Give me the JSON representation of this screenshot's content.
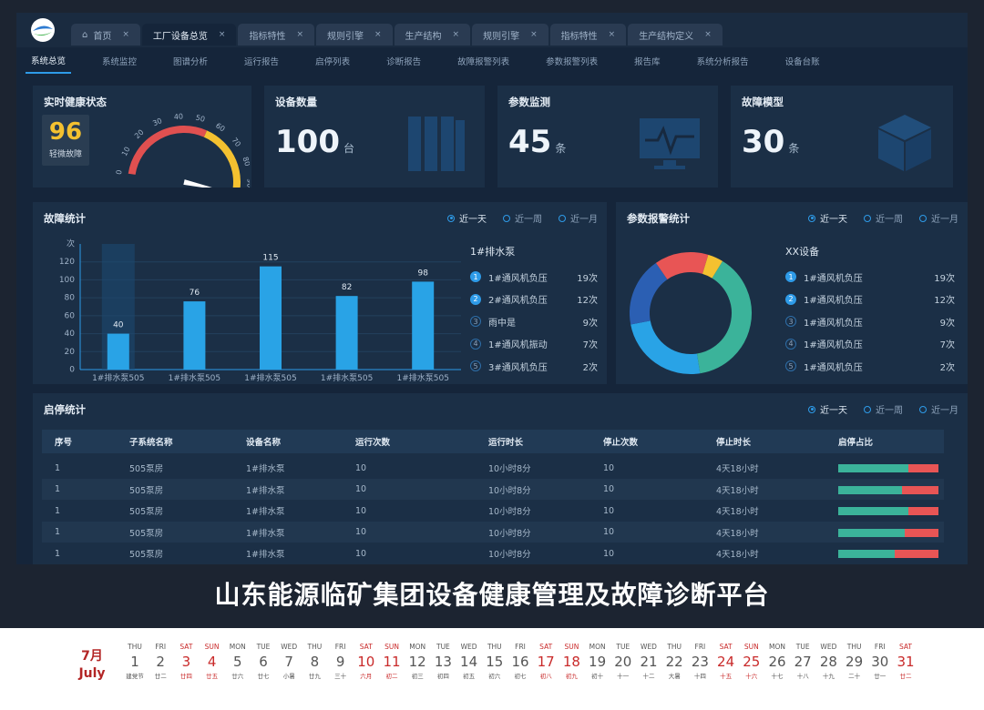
{
  "tabs": [
    {
      "label": "首页",
      "home": true,
      "active": false
    },
    {
      "label": "工厂设备总览",
      "home": false,
      "active": true
    },
    {
      "label": "指标特性",
      "home": false,
      "active": false
    },
    {
      "label": "规则引擎",
      "home": false,
      "active": false
    },
    {
      "label": "生产结构",
      "home": false,
      "active": false
    },
    {
      "label": "规则引擎",
      "home": false,
      "active": false
    },
    {
      "label": "指标特性",
      "home": false,
      "active": false
    },
    {
      "label": "生产结构定义",
      "home": false,
      "active": false
    }
  ],
  "tab_close": "×",
  "subnav": [
    "系统总览",
    "系统监控",
    "图谱分析",
    "运行报告",
    "启停列表",
    "诊断报告",
    "故障报警列表",
    "参数报警列表",
    "报告库",
    "系统分析报告",
    "设备台账"
  ],
  "health": {
    "title": "实时健康状态",
    "score": "96",
    "status": "轻微故障",
    "gauge_ticks": [
      "0",
      "10",
      "20",
      "30",
      "40",
      "50",
      "60",
      "70",
      "80",
      "90",
      "100"
    ],
    "gauge_value": 96,
    "colors": {
      "red": "#e05050",
      "yellow": "#f4c130",
      "needle": "#ffffff"
    }
  },
  "kpis": [
    {
      "title": "设备数量",
      "value": "100",
      "unit": "台",
      "icon": "bookshelf-icon"
    },
    {
      "title": "参数监测",
      "value": "45",
      "unit": "条",
      "icon": "monitor-icon"
    },
    {
      "title": "故障模型",
      "value": "30",
      "unit": "条",
      "icon": "cube-icon"
    }
  ],
  "fault_stats": {
    "title": "故障统计",
    "radios": [
      {
        "label": "近一天",
        "on": true
      },
      {
        "label": "近一周",
        "on": false
      },
      {
        "label": "近一月",
        "on": false
      }
    ],
    "rank_title": "1#排水泵",
    "rank": [
      {
        "no": "1",
        "name": "1#通风机负压",
        "count": "19次"
      },
      {
        "no": "2",
        "name": "2#通风机负压",
        "count": "12次"
      },
      {
        "no": "3",
        "name": "雨中是",
        "count": "9次"
      },
      {
        "no": "4",
        "name": "1#通风机振动",
        "count": "7次"
      },
      {
        "no": "5",
        "name": "3#通风机负压",
        "count": "2次"
      }
    ]
  },
  "chart_data": {
    "type": "bar",
    "ylabel": "次",
    "ylim": [
      0,
      140
    ],
    "yticks": [
      "0",
      "20",
      "40",
      "60",
      "80",
      "100",
      "120"
    ],
    "categories": [
      "1#排水泵505",
      "1#排水泵505",
      "1#排水泵505",
      "1#排水泵505",
      "1#排水泵505"
    ],
    "values": [
      40,
      76,
      115,
      82,
      98
    ],
    "labels": [
      "40",
      "76",
      "115",
      "82",
      "98"
    ],
    "highlight_index": 0,
    "bar_color": "#29a3e6"
  },
  "param_alarm": {
    "title": "参数报警统计",
    "radios": [
      {
        "label": "近一天",
        "on": true
      },
      {
        "label": "近一周",
        "on": false
      },
      {
        "label": "近一月",
        "on": false
      }
    ],
    "rank_title": "XX设备",
    "rank": [
      {
        "no": "1",
        "name": "1#通风机负压",
        "count": "19次"
      },
      {
        "no": "2",
        "name": "1#通风机负压",
        "count": "12次"
      },
      {
        "no": "3",
        "name": "1#通风机负压",
        "count": "9次"
      },
      {
        "no": "4",
        "name": "1#通风机负压",
        "count": "7次"
      },
      {
        "no": "5",
        "name": "1#通风机负压",
        "count": "2次"
      }
    ],
    "donut": [
      {
        "value": 19,
        "color": "#3bb39a"
      },
      {
        "value": 12,
        "color": "#29a3e6"
      },
      {
        "value": 9,
        "color": "#2b5fb3"
      },
      {
        "value": 7,
        "color": "#e85555"
      },
      {
        "value": 2,
        "color": "#f4c130"
      }
    ]
  },
  "start_stop": {
    "title": "启停统计",
    "radios": [
      {
        "label": "近一天",
        "on": true
      },
      {
        "label": "近一周",
        "on": false
      },
      {
        "label": "近一月",
        "on": false
      }
    ],
    "columns": [
      "序号",
      "子系统名称",
      "设备名称",
      "运行次数",
      "运行时长",
      "停止次数",
      "停止时长",
      "启停占比"
    ],
    "rows": [
      {
        "no": "1",
        "system": "505泵房",
        "device": "1#排水泵",
        "runs": "10",
        "run_time": "10小时8分",
        "stops": "10",
        "stop_time": "4天18小时",
        "run_ratio": 0.7
      },
      {
        "no": "1",
        "system": "505泵房",
        "device": "1#排水泵",
        "runs": "10",
        "run_time": "10小时8分",
        "stops": "10",
        "stop_time": "4天18小时",
        "run_ratio": 0.64
      },
      {
        "no": "1",
        "system": "505泵房",
        "device": "1#排水泵",
        "runs": "10",
        "run_time": "10小时8分",
        "stops": "10",
        "stop_time": "4天18小时",
        "run_ratio": 0.7
      },
      {
        "no": "1",
        "system": "505泵房",
        "device": "1#排水泵",
        "runs": "10",
        "run_time": "10小时8分",
        "stops": "10",
        "stop_time": "4天18小时",
        "run_ratio": 0.66
      },
      {
        "no": "1",
        "system": "505泵房",
        "device": "1#排水泵",
        "runs": "10",
        "run_time": "10小时8分",
        "stops": "10",
        "stop_time": "4天18小时",
        "run_ratio": 0.56
      }
    ],
    "colors": {
      "run": "#3bb39a",
      "stop": "#e85555"
    }
  },
  "banner": "山东能源临矿集团设备健康管理及故障诊断平台",
  "calendar": {
    "month_cn": "7月",
    "month_en": "July",
    "days": [
      {
        "wd": "THU",
        "dn": "1",
        "lu": "建党节",
        "red": false
      },
      {
        "wd": "FRI",
        "dn": "2",
        "lu": "廿二",
        "red": false
      },
      {
        "wd": "SAT",
        "dn": "3",
        "lu": "廿四",
        "red": true
      },
      {
        "wd": "SUN",
        "dn": "4",
        "lu": "廿五",
        "red": true
      },
      {
        "wd": "MON",
        "dn": "5",
        "lu": "廿六",
        "red": false
      },
      {
        "wd": "TUE",
        "dn": "6",
        "lu": "廿七",
        "red": false
      },
      {
        "wd": "WED",
        "dn": "7",
        "lu": "小暑",
        "red": false
      },
      {
        "wd": "THU",
        "dn": "8",
        "lu": "廿九",
        "red": false
      },
      {
        "wd": "FRI",
        "dn": "9",
        "lu": "三十",
        "red": false
      },
      {
        "wd": "SAT",
        "dn": "10",
        "lu": "六月",
        "red": true
      },
      {
        "wd": "SUN",
        "dn": "11",
        "lu": "初二",
        "red": true
      },
      {
        "wd": "MON",
        "dn": "12",
        "lu": "初三",
        "red": false
      },
      {
        "wd": "TUE",
        "dn": "13",
        "lu": "初四",
        "red": false
      },
      {
        "wd": "WED",
        "dn": "14",
        "lu": "初五",
        "red": false
      },
      {
        "wd": "THU",
        "dn": "15",
        "lu": "初六",
        "red": false
      },
      {
        "wd": "FRI",
        "dn": "16",
        "lu": "初七",
        "red": false
      },
      {
        "wd": "SAT",
        "dn": "17",
        "lu": "初八",
        "red": true
      },
      {
        "wd": "SUN",
        "dn": "18",
        "lu": "初九",
        "red": true
      },
      {
        "wd": "MON",
        "dn": "19",
        "lu": "初十",
        "red": false
      },
      {
        "wd": "TUE",
        "dn": "20",
        "lu": "十一",
        "red": false
      },
      {
        "wd": "WED",
        "dn": "21",
        "lu": "十二",
        "red": false
      },
      {
        "wd": "THU",
        "dn": "22",
        "lu": "大暑",
        "red": false
      },
      {
        "wd": "FRI",
        "dn": "23",
        "lu": "十四",
        "red": false
      },
      {
        "wd": "SAT",
        "dn": "24",
        "lu": "十五",
        "red": true
      },
      {
        "wd": "SUN",
        "dn": "25",
        "lu": "十六",
        "red": true
      },
      {
        "wd": "MON",
        "dn": "26",
        "lu": "十七",
        "red": false
      },
      {
        "wd": "TUE",
        "dn": "27",
        "lu": "十八",
        "red": false
      },
      {
        "wd": "WED",
        "dn": "28",
        "lu": "十九",
        "red": false
      },
      {
        "wd": "THU",
        "dn": "29",
        "lu": "二十",
        "red": false
      },
      {
        "wd": "FRI",
        "dn": "30",
        "lu": "廿一",
        "red": false
      },
      {
        "wd": "SAT",
        "dn": "31",
        "lu": "廿二",
        "red": true
      }
    ]
  }
}
